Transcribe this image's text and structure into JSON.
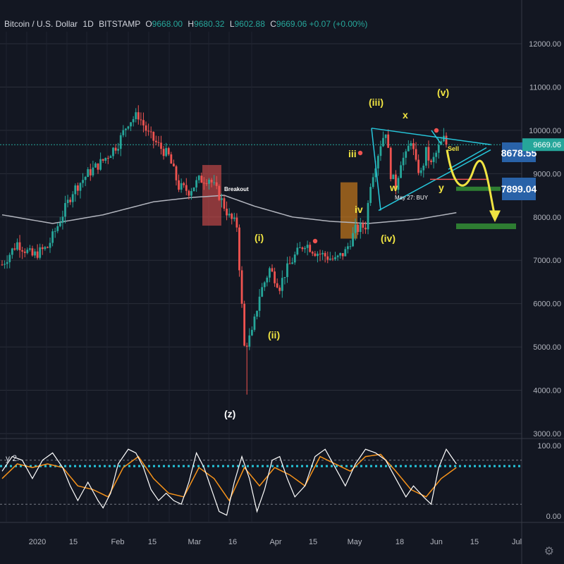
{
  "header": {
    "symbol": "Bitcoin / U.S. Dollar",
    "interval": "1D",
    "exchange": "BITSTAMP",
    "o_label": "O",
    "o": "9668.00",
    "h_label": "H",
    "h": "9680.32",
    "l_label": "L",
    "l": "9602.88",
    "c_label": "C",
    "c": "9669.06",
    "change": "+0.07 (+0.00%)"
  },
  "indicator_label": "y 2",
  "colors": {
    "background": "#131722",
    "up": "#26a69a",
    "down": "#ef5350",
    "wave_labels": "#f0e442",
    "trendline": "#26c6da",
    "ma": "#b2b5be",
    "stoch_k": "#ffffff",
    "stoch_d": "#f7931a",
    "last_price": "#26a69a",
    "level_box": "#2962a8"
  },
  "chart_data": {
    "type": "candlestick",
    "title": "Bitcoin / U.S. Dollar 1D BITSTAMP",
    "ylim": [
      3000,
      12000
    ],
    "y_ticks": [
      3000,
      4000,
      5000,
      6000,
      7000,
      8000,
      9000,
      10000,
      11000,
      12000
    ],
    "y_tick_labels": [
      "3000.00",
      "4000.00",
      "5000.00",
      "6000.00",
      "7000.00",
      "8000.00",
      "9000.00",
      "10000.00",
      "11000.00",
      "12000.00"
    ],
    "x_tick_labels": [
      "2020",
      "15",
      "Feb",
      "15",
      "Mar",
      "16",
      "Apr",
      "15",
      "May",
      "18",
      "Jun",
      "15",
      "Jul"
    ],
    "last_price": 9669.06,
    "level_labels": [
      "8678.55",
      "7899.04"
    ],
    "wave_labels": [
      "(iii)",
      "(v)",
      "x",
      "iii",
      "iv",
      "w",
      "y",
      "(iv)",
      "(i)",
      "(ii)",
      "(z)"
    ],
    "annotations": [
      "Breakout",
      "Sell",
      "May 27: BUY"
    ],
    "close_anchors": [
      [
        0,
        6900
      ],
      [
        6,
        7400
      ],
      [
        12,
        7100
      ],
      [
        18,
        7300
      ],
      [
        22,
        7800
      ],
      [
        28,
        8600
      ],
      [
        34,
        9000
      ],
      [
        40,
        9300
      ],
      [
        46,
        9700
      ],
      [
        50,
        10200
      ],
      [
        54,
        10350
      ],
      [
        58,
        9900
      ],
      [
        62,
        9650
      ],
      [
        66,
        9400
      ],
      [
        70,
        8700
      ],
      [
        74,
        8600
      ],
      [
        78,
        8850
      ],
      [
        82,
        8900
      ],
      [
        86,
        8500
      ],
      [
        90,
        8000
      ],
      [
        93,
        7800
      ],
      [
        96,
        5000
      ],
      [
        99,
        5300
      ],
      [
        102,
        6200
      ],
      [
        106,
        6800
      ],
      [
        110,
        6400
      ],
      [
        112,
        6700
      ],
      [
        116,
        7100
      ],
      [
        120,
        7400
      ],
      [
        124,
        7200
      ],
      [
        128,
        7100
      ],
      [
        132,
        7000
      ],
      [
        136,
        7200
      ],
      [
        140,
        7700
      ],
      [
        144,
        7800
      ],
      [
        146,
        8800
      ],
      [
        150,
        9700
      ],
      [
        152,
        10000
      ],
      [
        154,
        9000
      ],
      [
        156,
        8700
      ],
      [
        158,
        9300
      ],
      [
        160,
        9400
      ],
      [
        162,
        9800
      ],
      [
        164,
        9200
      ],
      [
        166,
        9000
      ],
      [
        168,
        9500
      ],
      [
        170,
        9200
      ],
      [
        173,
        9600
      ],
      [
        175,
        9800
      ],
      [
        176,
        9669
      ]
    ],
    "ma_anchors": [
      [
        0,
        8050
      ],
      [
        20,
        7850
      ],
      [
        40,
        8050
      ],
      [
        60,
        8350
      ],
      [
        75,
        8450
      ],
      [
        88,
        8500
      ],
      [
        100,
        8250
      ],
      [
        115,
        8000
      ],
      [
        130,
        7900
      ],
      [
        145,
        7850
      ],
      [
        165,
        7950
      ],
      [
        180,
        8100
      ]
    ],
    "stoch_k_anchors": [
      [
        0,
        65
      ],
      [
        4,
        85
      ],
      [
        8,
        80
      ],
      [
        12,
        55
      ],
      [
        16,
        80
      ],
      [
        20,
        90
      ],
      [
        24,
        70
      ],
      [
        27,
        45
      ],
      [
        30,
        25
      ],
      [
        34,
        50
      ],
      [
        38,
        25
      ],
      [
        40,
        15
      ],
      [
        43,
        35
      ],
      [
        46,
        75
      ],
      [
        50,
        95
      ],
      [
        53,
        90
      ],
      [
        56,
        70
      ],
      [
        59,
        40
      ],
      [
        62,
        25
      ],
      [
        65,
        35
      ],
      [
        68,
        25
      ],
      [
        71,
        20
      ],
      [
        74,
        50
      ],
      [
        77,
        90
      ],
      [
        80,
        70
      ],
      [
        83,
        40
      ],
      [
        86,
        10
      ],
      [
        89,
        5
      ],
      [
        92,
        50
      ],
      [
        95,
        85
      ],
      [
        98,
        55
      ],
      [
        101,
        10
      ],
      [
        104,
        40
      ],
      [
        107,
        80
      ],
      [
        110,
        85
      ],
      [
        113,
        55
      ],
      [
        116,
        30
      ],
      [
        120,
        45
      ],
      [
        124,
        85
      ],
      [
        128,
        95
      ],
      [
        132,
        70
      ],
      [
        136,
        45
      ],
      [
        140,
        75
      ],
      [
        144,
        95
      ],
      [
        148,
        90
      ],
      [
        152,
        80
      ],
      [
        156,
        55
      ],
      [
        160,
        30
      ],
      [
        163,
        45
      ],
      [
        167,
        30
      ],
      [
        170,
        20
      ],
      [
        173,
        70
      ],
      [
        176,
        95
      ],
      [
        180,
        75
      ]
    ],
    "stoch_d_anchors": [
      [
        0,
        55
      ],
      [
        6,
        75
      ],
      [
        12,
        70
      ],
      [
        18,
        75
      ],
      [
        24,
        70
      ],
      [
        30,
        45
      ],
      [
        36,
        40
      ],
      [
        42,
        30
      ],
      [
        48,
        70
      ],
      [
        54,
        85
      ],
      [
        60,
        55
      ],
      [
        66,
        35
      ],
      [
        72,
        30
      ],
      [
        78,
        70
      ],
      [
        84,
        55
      ],
      [
        90,
        25
      ],
      [
        96,
        70
      ],
      [
        102,
        45
      ],
      [
        108,
        70
      ],
      [
        114,
        60
      ],
      [
        120,
        45
      ],
      [
        126,
        85
      ],
      [
        132,
        75
      ],
      [
        138,
        65
      ],
      [
        144,
        85
      ],
      [
        150,
        88
      ],
      [
        156,
        65
      ],
      [
        162,
        40
      ],
      [
        168,
        30
      ],
      [
        174,
        55
      ],
      [
        180,
        70
      ]
    ],
    "stoch_ylim": [
      0,
      100
    ],
    "stoch_levels": [
      80,
      20
    ],
    "stoch_tick_labels": [
      "100.00",
      "0.00"
    ]
  }
}
